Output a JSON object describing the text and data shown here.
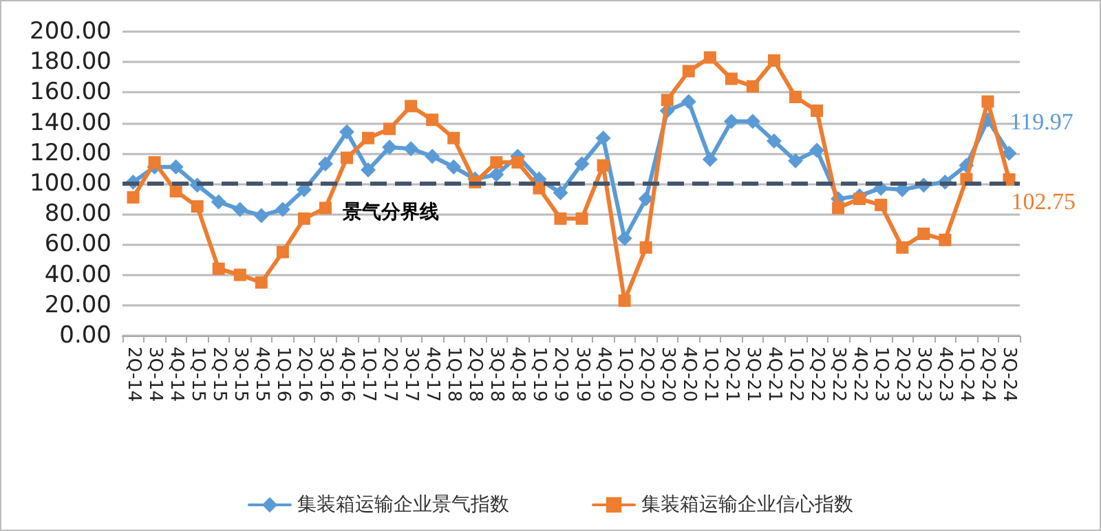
{
  "chart_data": {
    "type": "line",
    "categories": [
      "2Q-14",
      "3Q-14",
      "4Q-14",
      "1Q-15",
      "2Q-15",
      "3Q-15",
      "4Q-15",
      "1Q-16",
      "2Q-16",
      "3Q-16",
      "4Q-16",
      "1Q-17",
      "2Q-17",
      "3Q-17",
      "4Q-17",
      "1Q-18",
      "2Q-18",
      "3Q-18",
      "4Q-18",
      "1Q-19",
      "2Q-19",
      "3Q-19",
      "4Q-19",
      "1Q-20",
      "2Q-20",
      "3Q-20",
      "4Q-20",
      "1Q-21",
      "2Q-21",
      "3Q-21",
      "4Q-21",
      "1Q-22",
      "2Q-22",
      "3Q-22",
      "4Q-22",
      "1Q-23",
      "2Q-23",
      "3Q-23",
      "4Q-23",
      "1Q-24",
      "2Q-24",
      "3Q-24"
    ],
    "series": [
      {
        "name": "集装箱运输企业景气指数",
        "color": "#5b9bd5",
        "marker": "diamond",
        "values": [
          101,
          111,
          111,
          99,
          88,
          83,
          79,
          83,
          96,
          113,
          134,
          109,
          124,
          123,
          118,
          111,
          103,
          106,
          118,
          103,
          94,
          113,
          130,
          64,
          90,
          148,
          154,
          116,
          141,
          141,
          128,
          115,
          122,
          90,
          92,
          97,
          96,
          99,
          101,
          112,
          142,
          119.97
        ],
        "value_labels": [
          null,
          null,
          null,
          null,
          null,
          null,
          null,
          null,
          null,
          null,
          null,
          null,
          null,
          null,
          null,
          null,
          null,
          null,
          null,
          null,
          null,
          null,
          null,
          null,
          null,
          null,
          null,
          null,
          null,
          null,
          null,
          null,
          null,
          null,
          null,
          null,
          null,
          null,
          null,
          null,
          null,
          "119.97"
        ]
      },
      {
        "name": "集装箱运输企业信心指数",
        "color": "#ed7d31",
        "marker": "square",
        "values": [
          91,
          114,
          95,
          85,
          44,
          40,
          35,
          55,
          77,
          84,
          117,
          130,
          136,
          151,
          142,
          130,
          101,
          114,
          114,
          97,
          77,
          77,
          112,
          23,
          58,
          155,
          174,
          183,
          169,
          164,
          181,
          157,
          148,
          84,
          90,
          86,
          58,
          67,
          63,
          103,
          154,
          102.75
        ],
        "value_labels": [
          null,
          null,
          null,
          null,
          null,
          null,
          null,
          null,
          null,
          null,
          null,
          null,
          null,
          null,
          null,
          null,
          null,
          null,
          null,
          null,
          null,
          null,
          null,
          null,
          null,
          null,
          null,
          null,
          null,
          null,
          null,
          null,
          null,
          null,
          null,
          null,
          null,
          null,
          null,
          null,
          null,
          "102.75"
        ]
      }
    ],
    "ylim": [
      0,
      200
    ],
    "yticks": [
      {
        "value": 0,
        "label": "0.00"
      },
      {
        "value": 20,
        "label": "20.00"
      },
      {
        "value": 40,
        "label": "40.00"
      },
      {
        "value": 60,
        "label": "60.00"
      },
      {
        "value": 80,
        "label": "80.00"
      },
      {
        "value": 100,
        "label": "100.00"
      },
      {
        "value": 120,
        "label": "120.00"
      },
      {
        "value": 140,
        "label": "140.00"
      },
      {
        "value": 160,
        "label": "160.00"
      },
      {
        "value": 180,
        "label": "180.00"
      },
      {
        "value": 200,
        "label": "200.00"
      }
    ],
    "ref_lines": [
      {
        "axis": "y",
        "value": 100,
        "label": "景气分界线",
        "color": "#44546a",
        "line_style": "dashed"
      }
    ],
    "grid": "y",
    "legend": "bottom",
    "line_style": "solid"
  }
}
